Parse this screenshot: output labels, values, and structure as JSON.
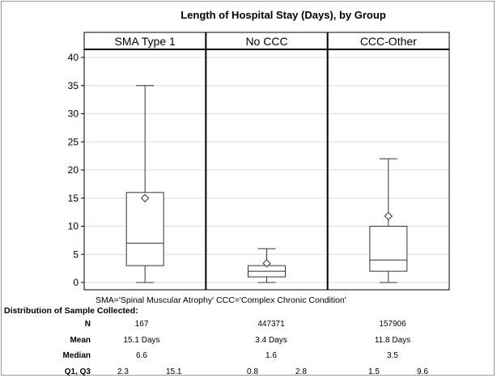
{
  "chart_data": {
    "type": "box",
    "title": "Length of Hospital Stay (Days), by Group",
    "panels": [
      "SMA Type 1",
      "No CCC",
      "CCC-Other"
    ],
    "ylim": [
      0,
      42
    ],
    "yticks": [
      0,
      5,
      10,
      15,
      20,
      25,
      30,
      35,
      40
    ],
    "grid": "horizontal",
    "boxes": [
      {
        "panel": "SMA Type 1",
        "min": 0,
        "q1": 3,
        "median": 7,
        "q3": 16,
        "max": 35,
        "mean": 15
      },
      {
        "panel": "No CCC",
        "min": 0,
        "q1": 1,
        "median": 2,
        "q3": 3,
        "max": 6,
        "mean": 3.4
      },
      {
        "panel": "CCC-Other",
        "min": 0,
        "q1": 2,
        "median": 4,
        "q3": 10,
        "max": 22,
        "mean": 11.8
      }
    ],
    "footnote": "SMA='Spinal Muscular Atrophy'  CCC='Complex Chronic Condition'"
  },
  "stats_table": {
    "heading": "Distribution of Sample Collected:",
    "rows": [
      {
        "label": "N",
        "values": [
          "167",
          "447371",
          "157906"
        ]
      },
      {
        "label": "Mean",
        "values": [
          "15.1 Days",
          "3.4 Days",
          "11.8 Days"
        ]
      },
      {
        "label": "Median",
        "values": [
          "6.6",
          "1.6",
          "3.5"
        ]
      },
      {
        "label": "Q1, Q3",
        "values": [
          [
            "2.3",
            "15.1"
          ],
          [
            "0.8",
            "2.8"
          ],
          [
            "1.5",
            "9.6"
          ]
        ]
      }
    ]
  }
}
